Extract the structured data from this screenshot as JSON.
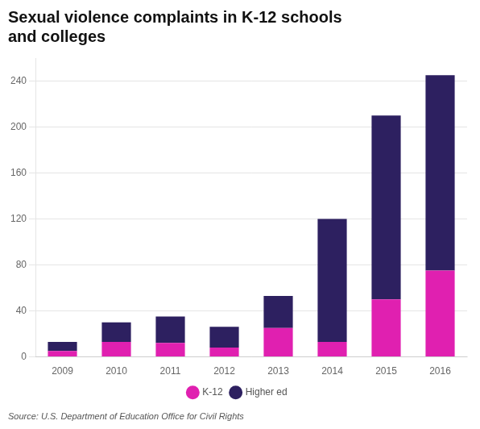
{
  "chart_data": {
    "type": "bar",
    "stacked": true,
    "title": [
      "Sexual violence complaints in K-12 schools",
      "and colleges"
    ],
    "annotations": [
      "Source: U.S. Department of Education Office for Civil Rights"
    ],
    "categories": [
      "2009",
      "2010",
      "2011",
      "2012",
      "2013",
      "2014",
      "2015",
      "2016"
    ],
    "series": [
      {
        "name": "K-12",
        "color": "#e020b0",
        "values": [
          5,
          13,
          12,
          8,
          25,
          13,
          50,
          75
        ]
      },
      {
        "name": "Higher ed",
        "color": "#2d2060",
        "values": [
          8,
          17,
          23,
          18,
          28,
          107,
          160,
          170
        ]
      }
    ],
    "ylim": [
      0,
      260
    ],
    "yticks": [
      0,
      40,
      80,
      120,
      160,
      200,
      240
    ],
    "grid": true,
    "legend": "bottom"
  }
}
